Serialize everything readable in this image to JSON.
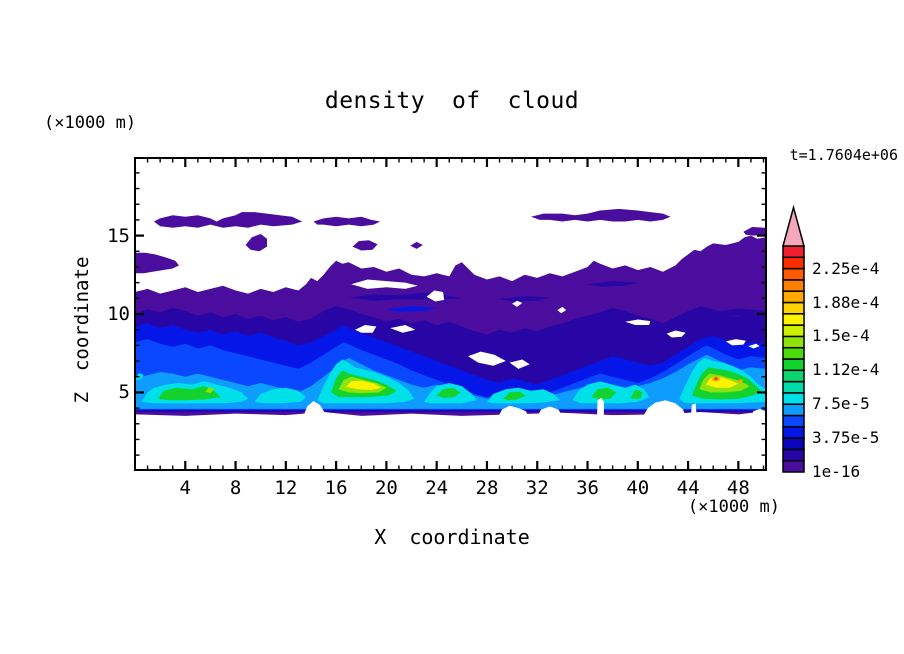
{
  "figure": {
    "title": "density of cloud",
    "time_label": "t=1.7604e+06",
    "background": "#ffffff"
  },
  "axes": {
    "x_label": "X coordinate",
    "x_unit": "(×1000 m)",
    "x_tick_labels": [
      "4",
      "8",
      "12",
      "16",
      "20",
      "24",
      "28",
      "32",
      "36",
      "40",
      "44",
      "48"
    ],
    "x_minor_tick_step": 1,
    "x_range": [
      0,
      50.2
    ],
    "z_label": "Z coordinate",
    "z_unit": "(×1000 m)",
    "z_tick_labels": [
      "5",
      "10",
      "15"
    ],
    "z_minor_tick_step": 1,
    "z_range": [
      0,
      20
    ]
  },
  "chart_data": {
    "type": "heatmap",
    "subtype": "filled_contour",
    "title": "density of cloud",
    "time_annotation": "t=1.7604e+06",
    "xlabel": "X coordinate (×1000 m)",
    "ylabel": "Z coordinate (×1000 m)",
    "xlim": [
      0,
      50.2
    ],
    "ylim": [
      0,
      20
    ],
    "grid": false,
    "legend_position": "right colorbar with overflow arrow",
    "colorbar": {
      "labels": [
        "1e-16",
        "3.75e-5",
        "7.5e-5",
        "1.12e-4",
        "1.5e-4",
        "1.88e-4",
        "2.25e-4"
      ],
      "label_boundaries": [
        0,
        3,
        6,
        9,
        12,
        15,
        18
      ],
      "n_segments": 20,
      "segment_colors_bottom_to_top": [
        "#4A0D9E",
        "#2806A5",
        "#0A04BC",
        "#0517E8",
        "#0948FF",
        "#0E9CFF",
        "#00E0E8",
        "#00DCAC",
        "#0CD670",
        "#14D22E",
        "#4CDC0C",
        "#8FE30A",
        "#CFF000",
        "#FFF200",
        "#FFD400",
        "#FFAA00",
        "#FF8000",
        "#FF5A00",
        "#FF2E00",
        "#F01E2E"
      ],
      "over_color": "#F5A8BC"
    },
    "features": {
      "description": "cloud water density field; white = below 1e-16",
      "cloud_base_z": 3.5,
      "main_deck_top_z_range": [
        11.3,
        15.0
      ],
      "detached_patches_z_range": [
        14.0,
        16.7
      ],
      "cores": [
        {
          "x_range": [
            0.5,
            9
          ],
          "z_range": [
            4.3,
            5.7
          ],
          "peak_level": "~1.1e-4 green"
        },
        {
          "x_range": [
            14.5,
            22
          ],
          "z_range": [
            4.3,
            7.2
          ],
          "peak_level": "~1.6e-4 yellow"
        },
        {
          "x_range": [
            23,
            27
          ],
          "z_range": [
            4.3,
            5.6
          ],
          "peak_level": "~1e-4 green specks"
        },
        {
          "x_range": [
            35,
            40.5
          ],
          "z_range": [
            4.3,
            5.7
          ],
          "peak_level": "~1e-4 green specks"
        },
        {
          "x_range": [
            43.3,
            50.2
          ],
          "z_range": [
            4.3,
            7.2
          ],
          "peak_level": "~2.3e-4 orange-red speck"
        }
      ]
    }
  }
}
